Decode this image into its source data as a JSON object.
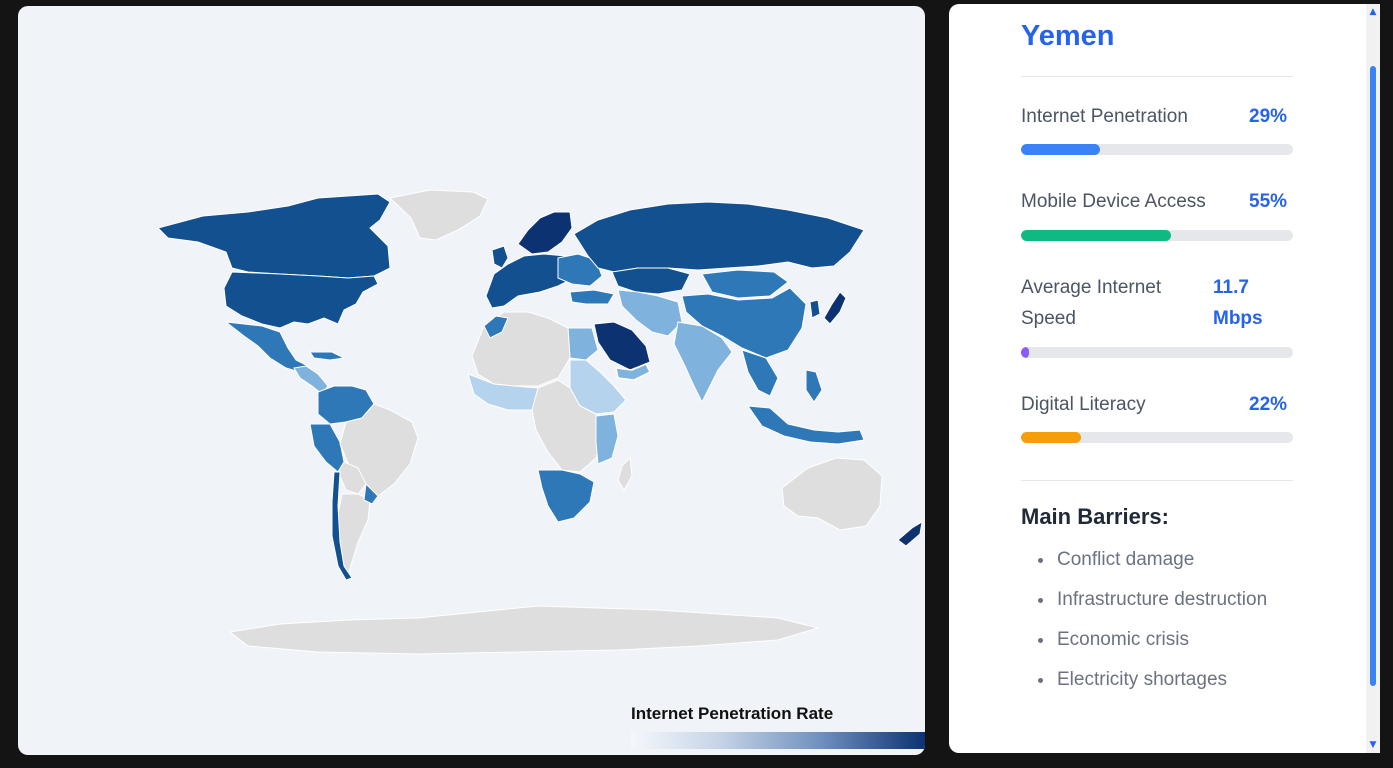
{
  "map": {
    "legend_title": "Internet Penetration Rate",
    "colors": {
      "background": "#f0f3f8",
      "no_data": "#dedede",
      "darkest": "#0c3272",
      "dark": "#12508f",
      "mid": "#2f78b8",
      "light": "#7fb2dc",
      "lightest": "#b5d3ec"
    }
  },
  "detail": {
    "country": "Yemen",
    "metrics": [
      {
        "label": "Internet Penetration",
        "value": "29%",
        "percent": 29,
        "color": "#3b82f6"
      },
      {
        "label": "Mobile Device Access",
        "value": "55%",
        "percent": 55,
        "color": "#10b981"
      },
      {
        "label": "Average Internet Speed",
        "value": "11.7 Mbps",
        "percent": 3,
        "color": "#8b5cf6"
      },
      {
        "label": "Digital Literacy",
        "value": "22%",
        "percent": 22,
        "color": "#f59e0b"
      }
    ],
    "barriers_title": "Main Barriers:",
    "barriers": [
      "Conflict damage",
      "Infrastructure destruction",
      "Economic crisis",
      "Electricity shortages"
    ]
  }
}
